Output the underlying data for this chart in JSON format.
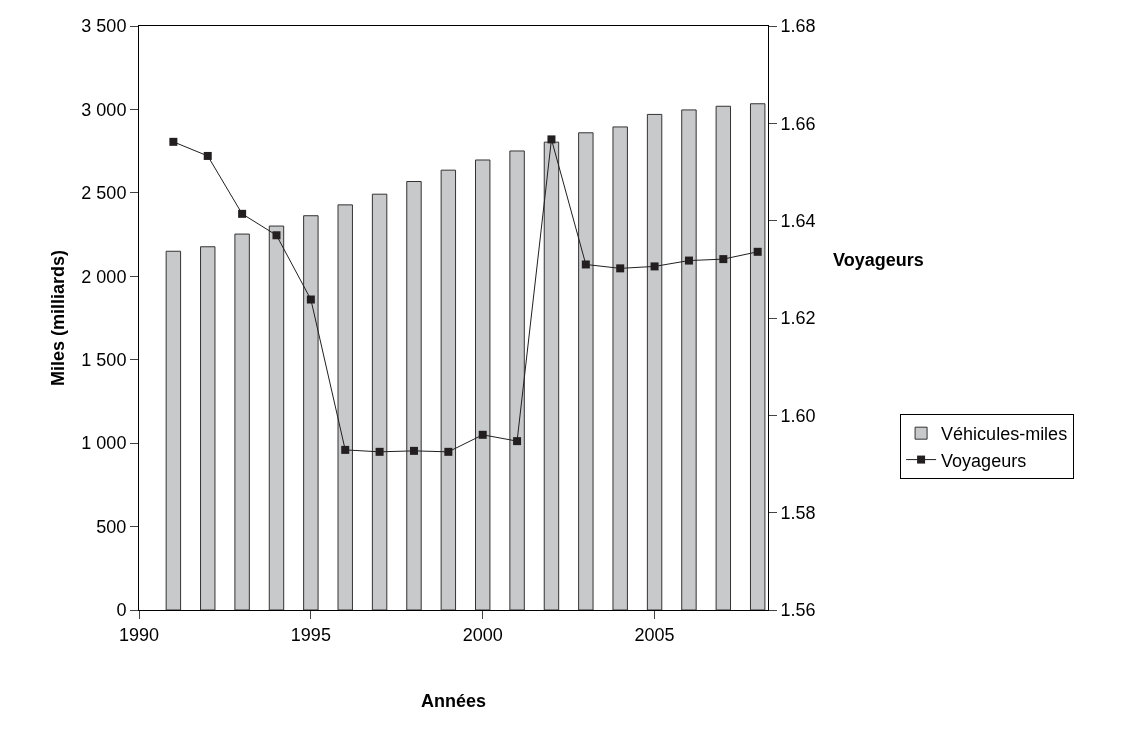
{
  "chart_data": {
    "type": "bar",
    "xlabel": "Années",
    "ylabel": "Miles (milliards)",
    "y2label": "Voyageurs",
    "x": [
      1991,
      1992,
      1993,
      1994,
      1995,
      1996,
      1997,
      1998,
      1999,
      2000,
      2001,
      2002,
      2003,
      2004,
      2005,
      2006,
      2007,
      2008
    ],
    "series": [
      {
        "name": "Véhicules-miles",
        "color": "#c8c9cb",
        "values": [
          2150,
          2177,
          2253,
          2301,
          2363,
          2428,
          2492,
          2568,
          2636,
          2697,
          2751,
          2804,
          2860,
          2895,
          2970,
          2997,
          3019,
          3034
        ]
      },
      {
        "name": "Voyageurs",
        "type": "line",
        "axis": "y2",
        "color": "#231f20",
        "marker": "square",
        "line_style": "solid",
        "values": [
          1.6562,
          1.6533,
          1.6414,
          1.637,
          1.6238,
          1.5929,
          1.5925,
          1.5927,
          1.5925,
          1.596,
          1.5947,
          1.6567,
          1.631,
          1.6302,
          1.6306,
          1.6318,
          1.6321,
          1.6336
        ]
      }
    ],
    "xlim": [
      1990,
      2008.3
    ],
    "xticks": [
      1990,
      1995,
      2000,
      2005
    ],
    "ylim": [
      0,
      3500
    ],
    "yticks": [
      {
        "value": 0,
        "label": "0"
      },
      {
        "value": 500,
        "label": "500"
      },
      {
        "value": 1000,
        "label": "1 000"
      },
      {
        "value": 1500,
        "label": "1 500"
      },
      {
        "value": 2000,
        "label": "2 000"
      },
      {
        "value": 2500,
        "label": "2 500"
      },
      {
        "value": 3000,
        "label": "3 000"
      },
      {
        "value": 3500,
        "label": "3 500"
      }
    ],
    "y2lim": [
      1.56,
      1.68
    ],
    "y2ticks": [
      {
        "value": 1.56,
        "label": "1.56"
      },
      {
        "value": 1.58,
        "label": "1.58"
      },
      {
        "value": 1.6,
        "label": "1.60"
      },
      {
        "value": 1.62,
        "label": "1.62"
      },
      {
        "value": 1.64,
        "label": "1.64"
      },
      {
        "value": 1.66,
        "label": "1.66"
      },
      {
        "value": 1.68,
        "label": "1.68"
      }
    ],
    "legend": "right"
  }
}
